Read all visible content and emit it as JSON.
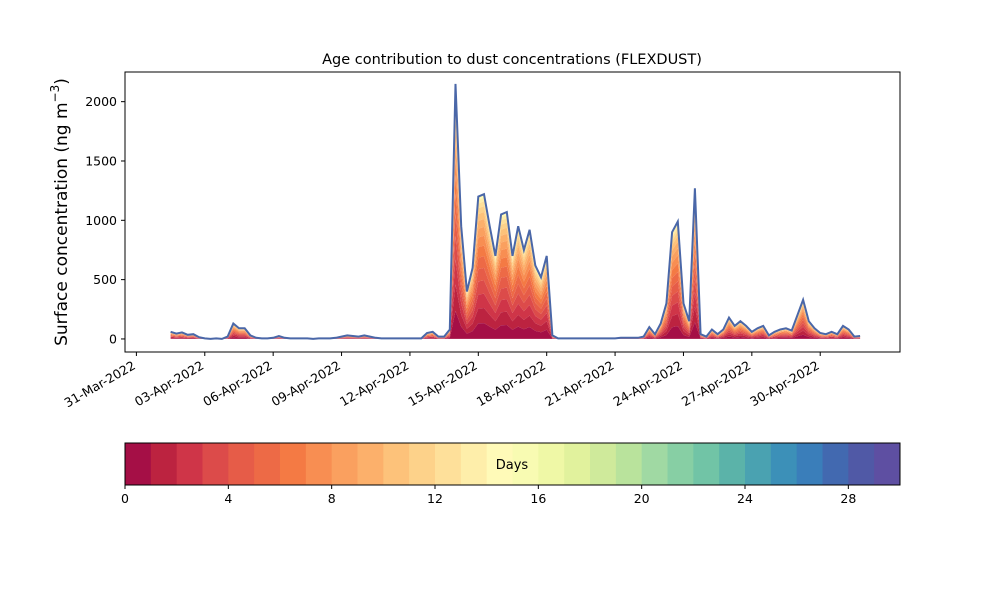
{
  "chart_data": {
    "type": "area",
    "stacked": true,
    "title": "Age contribution to dust concentrations (FLEXDUST)",
    "ylabel_main": "Surface concentration (ng m",
    "ylabel_exp": "−3",
    "ylabel_close": ")",
    "xlabel": "",
    "ylim": [
      -110,
      2250
    ],
    "yticks": [
      0,
      500,
      1000,
      1500,
      2000
    ],
    "xlim_dates": [
      "2022-03-30T12:00",
      "2022-05-03T12:00"
    ],
    "xticks": [
      {
        "date": "2022-03-31",
        "label": "31-Mar-2022"
      },
      {
        "date": "2022-04-03",
        "label": "03-Apr-2022"
      },
      {
        "date": "2022-04-06",
        "label": "06-Apr-2022"
      },
      {
        "date": "2022-04-09",
        "label": "09-Apr-2022"
      },
      {
        "date": "2022-04-12",
        "label": "12-Apr-2022"
      },
      {
        "date": "2022-04-15",
        "label": "15-Apr-2022"
      },
      {
        "date": "2022-04-18",
        "label": "18-Apr-2022"
      },
      {
        "date": "2022-04-21",
        "label": "21-Apr-2022"
      },
      {
        "date": "2022-04-24",
        "label": "24-Apr-2022"
      },
      {
        "date": "2022-04-27",
        "label": "27-Apr-2022"
      },
      {
        "date": "2022-04-30",
        "label": "30-Apr-2022"
      }
    ],
    "total_series": [
      [
        "2022-04-01T12:00",
        60
      ],
      [
        "2022-04-01T18:00",
        45
      ],
      [
        "2022-04-02T00:00",
        55
      ],
      [
        "2022-04-02T06:00",
        35
      ],
      [
        "2022-04-02T12:00",
        40
      ],
      [
        "2022-04-02T18:00",
        15
      ],
      [
        "2022-04-03T00:00",
        5
      ],
      [
        "2022-04-03T06:00",
        0
      ],
      [
        "2022-04-03T12:00",
        5
      ],
      [
        "2022-04-03T18:00",
        0
      ],
      [
        "2022-04-04T00:00",
        20
      ],
      [
        "2022-04-04T06:00",
        130
      ],
      [
        "2022-04-04T12:00",
        90
      ],
      [
        "2022-04-04T18:00",
        90
      ],
      [
        "2022-04-05T00:00",
        30
      ],
      [
        "2022-04-05T06:00",
        10
      ],
      [
        "2022-04-05T12:00",
        5
      ],
      [
        "2022-04-05T18:00",
        5
      ],
      [
        "2022-04-06T00:00",
        10
      ],
      [
        "2022-04-06T06:00",
        25
      ],
      [
        "2022-04-06T12:00",
        10
      ],
      [
        "2022-04-06T18:00",
        5
      ],
      [
        "2022-04-07T00:00",
        5
      ],
      [
        "2022-04-07T06:00",
        5
      ],
      [
        "2022-04-07T12:00",
        5
      ],
      [
        "2022-04-07T18:00",
        0
      ],
      [
        "2022-04-08T00:00",
        5
      ],
      [
        "2022-04-08T06:00",
        5
      ],
      [
        "2022-04-08T12:00",
        5
      ],
      [
        "2022-04-08T18:00",
        10
      ],
      [
        "2022-04-09T00:00",
        20
      ],
      [
        "2022-04-09T06:00",
        30
      ],
      [
        "2022-04-09T12:00",
        25
      ],
      [
        "2022-04-09T18:00",
        20
      ],
      [
        "2022-04-10T00:00",
        30
      ],
      [
        "2022-04-10T06:00",
        20
      ],
      [
        "2022-04-10T12:00",
        10
      ],
      [
        "2022-04-10T18:00",
        5
      ],
      [
        "2022-04-11T00:00",
        5
      ],
      [
        "2022-04-11T06:00",
        5
      ],
      [
        "2022-04-11T12:00",
        5
      ],
      [
        "2022-04-11T18:00",
        5
      ],
      [
        "2022-04-12T00:00",
        5
      ],
      [
        "2022-04-12T06:00",
        5
      ],
      [
        "2022-04-12T12:00",
        5
      ],
      [
        "2022-04-12T18:00",
        50
      ],
      [
        "2022-04-13T00:00",
        60
      ],
      [
        "2022-04-13T06:00",
        20
      ],
      [
        "2022-04-13T12:00",
        20
      ],
      [
        "2022-04-13T18:00",
        80
      ],
      [
        "2022-04-14T00:00",
        2150
      ],
      [
        "2022-04-14T06:00",
        950
      ],
      [
        "2022-04-14T12:00",
        400
      ],
      [
        "2022-04-14T18:00",
        600
      ],
      [
        "2022-04-15T00:00",
        1200
      ],
      [
        "2022-04-15T06:00",
        1220
      ],
      [
        "2022-04-15T12:00",
        950
      ],
      [
        "2022-04-15T18:00",
        700
      ],
      [
        "2022-04-16T00:00",
        1050
      ],
      [
        "2022-04-16T06:00",
        1070
      ],
      [
        "2022-04-16T12:00",
        700
      ],
      [
        "2022-04-16T18:00",
        950
      ],
      [
        "2022-04-17T00:00",
        750
      ],
      [
        "2022-04-17T06:00",
        920
      ],
      [
        "2022-04-17T12:00",
        620
      ],
      [
        "2022-04-17T18:00",
        520
      ],
      [
        "2022-04-18T00:00",
        700
      ],
      [
        "2022-04-18T06:00",
        30
      ],
      [
        "2022-04-18T12:00",
        5
      ],
      [
        "2022-04-18T18:00",
        5
      ],
      [
        "2022-04-19T00:00",
        5
      ],
      [
        "2022-04-19T06:00",
        5
      ],
      [
        "2022-04-19T12:00",
        5
      ],
      [
        "2022-04-19T18:00",
        5
      ],
      [
        "2022-04-20T00:00",
        5
      ],
      [
        "2022-04-20T06:00",
        5
      ],
      [
        "2022-04-20T12:00",
        5
      ],
      [
        "2022-04-20T18:00",
        5
      ],
      [
        "2022-04-21T00:00",
        5
      ],
      [
        "2022-04-21T06:00",
        10
      ],
      [
        "2022-04-21T12:00",
        10
      ],
      [
        "2022-04-21T18:00",
        10
      ],
      [
        "2022-04-22T00:00",
        10
      ],
      [
        "2022-04-22T06:00",
        20
      ],
      [
        "2022-04-22T12:00",
        100
      ],
      [
        "2022-04-22T18:00",
        40
      ],
      [
        "2022-04-23T00:00",
        130
      ],
      [
        "2022-04-23T06:00",
        300
      ],
      [
        "2022-04-23T12:00",
        900
      ],
      [
        "2022-04-23T18:00",
        990
      ],
      [
        "2022-04-24T00:00",
        300
      ],
      [
        "2022-04-24T06:00",
        150
      ],
      [
        "2022-04-24T12:00",
        1270
      ],
      [
        "2022-04-24T18:00",
        40
      ],
      [
        "2022-04-25T00:00",
        20
      ],
      [
        "2022-04-25T06:00",
        80
      ],
      [
        "2022-04-25T12:00",
        40
      ],
      [
        "2022-04-25T18:00",
        80
      ],
      [
        "2022-04-26T00:00",
        180
      ],
      [
        "2022-04-26T06:00",
        110
      ],
      [
        "2022-04-26T12:00",
        150
      ],
      [
        "2022-04-26T18:00",
        110
      ],
      [
        "2022-04-27T00:00",
        60
      ],
      [
        "2022-04-27T06:00",
        90
      ],
      [
        "2022-04-27T12:00",
        110
      ],
      [
        "2022-04-27T18:00",
        30
      ],
      [
        "2022-04-28T00:00",
        60
      ],
      [
        "2022-04-28T06:00",
        80
      ],
      [
        "2022-04-28T12:00",
        90
      ],
      [
        "2022-04-28T18:00",
        70
      ],
      [
        "2022-04-29T00:00",
        200
      ],
      [
        "2022-04-29T06:00",
        330
      ],
      [
        "2022-04-29T12:00",
        150
      ],
      [
        "2022-04-29T18:00",
        90
      ],
      [
        "2022-04-30T00:00",
        50
      ],
      [
        "2022-04-30T06:00",
        40
      ],
      [
        "2022-04-30T12:00",
        60
      ],
      [
        "2022-04-30T18:00",
        40
      ],
      [
        "2022-05-01T00:00",
        110
      ],
      [
        "2022-05-01T06:00",
        80
      ],
      [
        "2022-05-01T12:00",
        20
      ],
      [
        "2022-05-01T18:00",
        25
      ]
    ],
    "colorbar": {
      "label": "Days",
      "min": 0,
      "max": 30,
      "ticks": [
        0,
        4,
        8,
        12,
        16,
        20,
        24,
        28
      ],
      "colors": [
        "#a50f46",
        "#bc2340",
        "#cf3548",
        "#dc4b4a",
        "#e65c48",
        "#ed6a46",
        "#f47a44",
        "#f88e52",
        "#faa05f",
        "#fcb06b",
        "#fdc27a",
        "#fdd28a",
        "#fee09a",
        "#feeeaa",
        "#fffab8",
        "#f8fbb2",
        "#eff8a6",
        "#e1f29d",
        "#cfea9b",
        "#b9e39c",
        "#a0d9a3",
        "#87cfa4",
        "#71c4a6",
        "#5bb3a9",
        "#4aa2b1",
        "#3c90b8",
        "#3a7eba",
        "#4269b0",
        "#5059a6",
        "#5e4fa2"
      ]
    },
    "line_color": "#4a67a8"
  }
}
